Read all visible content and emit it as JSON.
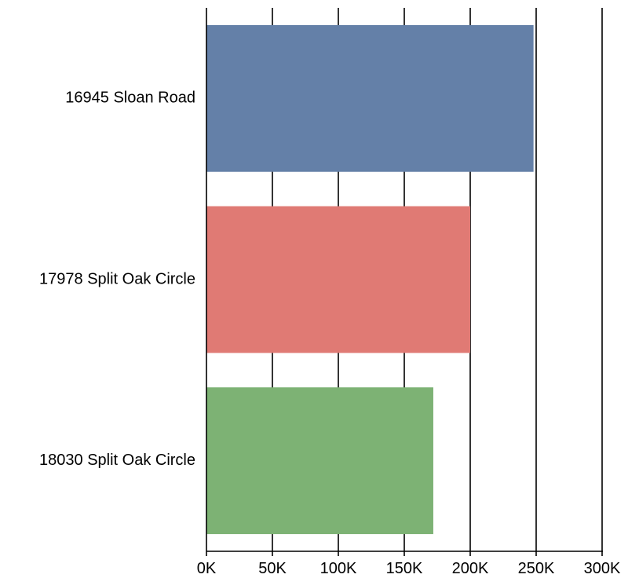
{
  "chart_data": {
    "type": "bar",
    "orientation": "horizontal",
    "categories": [
      "16945 Sloan Road",
      "17978 Split Oak Circle",
      "18030 Split Oak Circle"
    ],
    "values": [
      248000,
      200000,
      172000
    ],
    "colors": [
      "#6480a8",
      "#e07a74",
      "#7db274"
    ],
    "xlim": [
      0,
      300000
    ],
    "x_ticks": [
      0,
      50000,
      100000,
      150000,
      200000,
      250000,
      300000
    ],
    "x_tick_labels": [
      "0K",
      "50K",
      "100K",
      "150K",
      "200K",
      "250K",
      "300K"
    ],
    "title": "",
    "xlabel": "",
    "ylabel": "",
    "grid": "vertical",
    "legend": "none"
  }
}
